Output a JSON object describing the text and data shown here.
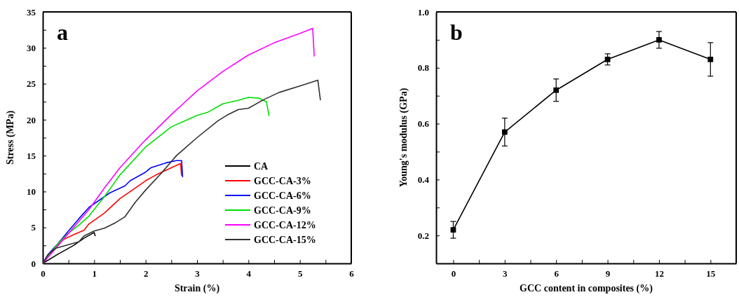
{
  "chart_data": [
    {
      "type": "line",
      "xlabel": "Strain (%)",
      "ylabel": "Stress (MPa)",
      "annotations": [
        "a"
      ],
      "xlim": [
        0,
        6
      ],
      "ylim": [
        0,
        35
      ],
      "xticks": [
        0,
        {
          "value": 0.5,
          "label": null
        },
        1,
        {
          "value": 1.5,
          "label": null
        },
        2,
        {
          "value": 2.5,
          "label": null
        },
        3,
        {
          "value": 3.5,
          "label": null
        },
        4,
        {
          "value": 4.5,
          "label": null
        },
        5,
        {
          "value": 5.5,
          "label": null
        },
        6
      ],
      "yticks": [
        0,
        {
          "value": 2.5,
          "label": null
        },
        5,
        {
          "value": 7.5,
          "label": null
        },
        10,
        {
          "value": 12.5,
          "label": null
        },
        15,
        {
          "value": 17.5,
          "label": null
        },
        20,
        {
          "value": 22.5,
          "label": null
        },
        25,
        {
          "value": 27.5,
          "label": null
        },
        30,
        {
          "value": 32.5,
          "label": null
        },
        35
      ],
      "grid": false,
      "legend": "right",
      "marker": "none",
      "line_style": "solid",
      "series": [
        {
          "name": "CA",
          "color": "#000000",
          "x": [
            0,
            0.3,
            0.6,
            0.8,
            1.0,
            1.02
          ],
          "values": [
            0,
            1.3,
            2.5,
            3.5,
            4.3,
            3.8
          ]
        },
        {
          "name": "GCC-CA-3%",
          "color": "#ff0000",
          "x": [
            0,
            0.2,
            0.4,
            0.6,
            0.8,
            0.9,
            1.2,
            1.5,
            1.8,
            2.0,
            2.2,
            2.5,
            2.68,
            2.7
          ],
          "values": [
            0,
            2,
            3.3,
            4,
            4.6,
            5.5,
            7,
            9,
            10.5,
            11.5,
            12.3,
            13.3,
            13.9,
            12.2
          ]
        },
        {
          "name": "GCC-CA-6%",
          "color": "#0000ff",
          "x": [
            0,
            0.1,
            0.3,
            0.5,
            0.7,
            0.9,
            1.1,
            1.3,
            1.6,
            1.7,
            2.0,
            2.1,
            2.4,
            2.6,
            2.7,
            2.72
          ],
          "values": [
            0,
            1.2,
            2.8,
            4.5,
            6.2,
            7.8,
            8.8,
            9.8,
            10.8,
            11.5,
            12.7,
            13.3,
            14,
            14.3,
            14.3,
            12
          ]
        },
        {
          "name": "GCC-CA-9%",
          "color": "#00e000",
          "x": [
            0,
            0.3,
            0.5,
            0.7,
            0.9,
            1.2,
            1.5,
            2.0,
            2.5,
            3.0,
            3.2,
            3.5,
            3.8,
            4.0,
            4.2,
            4.35,
            4.4
          ],
          "values": [
            0,
            2.8,
            4.2,
            5.3,
            6.6,
            9.3,
            12.3,
            16.2,
            19,
            20.6,
            21,
            22.2,
            22.7,
            23.1,
            23,
            22.5,
            20.5
          ]
        },
        {
          "name": "GCC-CA-12%",
          "color": "#ff00ff",
          "x": [
            0,
            0.3,
            0.6,
            0.9,
            1.2,
            1.5,
            2.0,
            2.5,
            3.0,
            3.5,
            4.0,
            4.5,
            5.0,
            5.25,
            5.28
          ],
          "values": [
            0,
            2.5,
            5,
            7.5,
            10.5,
            13.3,
            17.2,
            20.7,
            24,
            26.7,
            29,
            30.7,
            32,
            32.7,
            28.8
          ]
        },
        {
          "name": "GCC-CA-15%",
          "color": "#303030",
          "x": [
            0,
            0.1,
            0.25,
            0.5,
            0.7,
            0.8,
            1.0,
            1.2,
            1.4,
            1.6,
            1.8,
            2.0,
            2.3,
            2.6,
            3.0,
            3.4,
            3.6,
            3.8,
            4.0,
            4.3,
            4.6,
            5.0,
            5.35,
            5.4
          ],
          "values": [
            0,
            1.2,
            2.1,
            2.6,
            3.0,
            3.8,
            4.5,
            4.9,
            5.6,
            6.5,
            8.5,
            10.2,
            12.5,
            15,
            17.5,
            19.8,
            20.7,
            21.4,
            21.6,
            22.8,
            23.8,
            24.7,
            25.5,
            22.7
          ]
        }
      ]
    },
    {
      "type": "line",
      "xlabel": "GCC content in composites (%)",
      "ylabel": "Young's modulus (GPa)",
      "annotations": [
        "b"
      ],
      "xlim": [
        -1,
        16.5
      ],
      "ylim": [
        0.1,
        1.0
      ],
      "xticks": [
        0,
        {
          "value": 1.5,
          "label": null
        },
        3,
        {
          "value": 4.5,
          "label": null
        },
        6,
        {
          "value": 7.5,
          "label": null
        },
        9,
        {
          "value": 10.5,
          "label": null
        },
        12,
        {
          "value": 13.5,
          "label": null
        },
        15,
        {
          "value": 16.5,
          "label": null
        }
      ],
      "yticks": [
        {
          "value": 0.2,
          "label": "0.2"
        },
        {
          "value": 0.3,
          "label": null
        },
        {
          "value": 0.4,
          "label": "0.4"
        },
        {
          "value": 0.5,
          "label": null
        },
        {
          "value": 0.6,
          "label": "0.6"
        },
        {
          "value": 0.7,
          "label": null
        },
        {
          "value": 0.8,
          "label": "0.8"
        },
        {
          "value": 0.9,
          "label": null
        },
        {
          "value": 1.0,
          "label": "1.0"
        }
      ],
      "grid": false,
      "legend": false,
      "marker": "square",
      "line_style": "solid",
      "series": [
        {
          "color": "#000000",
          "x": [
            0,
            3,
            6,
            9,
            12,
            15
          ],
          "values": [
            0.22,
            0.57,
            0.72,
            0.83,
            0.9,
            0.83
          ],
          "errors": [
            [
              0.19,
              0.25
            ],
            [
              0.52,
              0.62
            ],
            [
              0.68,
              0.76
            ],
            [
              0.81,
              0.85
            ],
            [
              0.87,
              0.93
            ],
            [
              0.77,
              0.89
            ]
          ]
        }
      ]
    }
  ]
}
